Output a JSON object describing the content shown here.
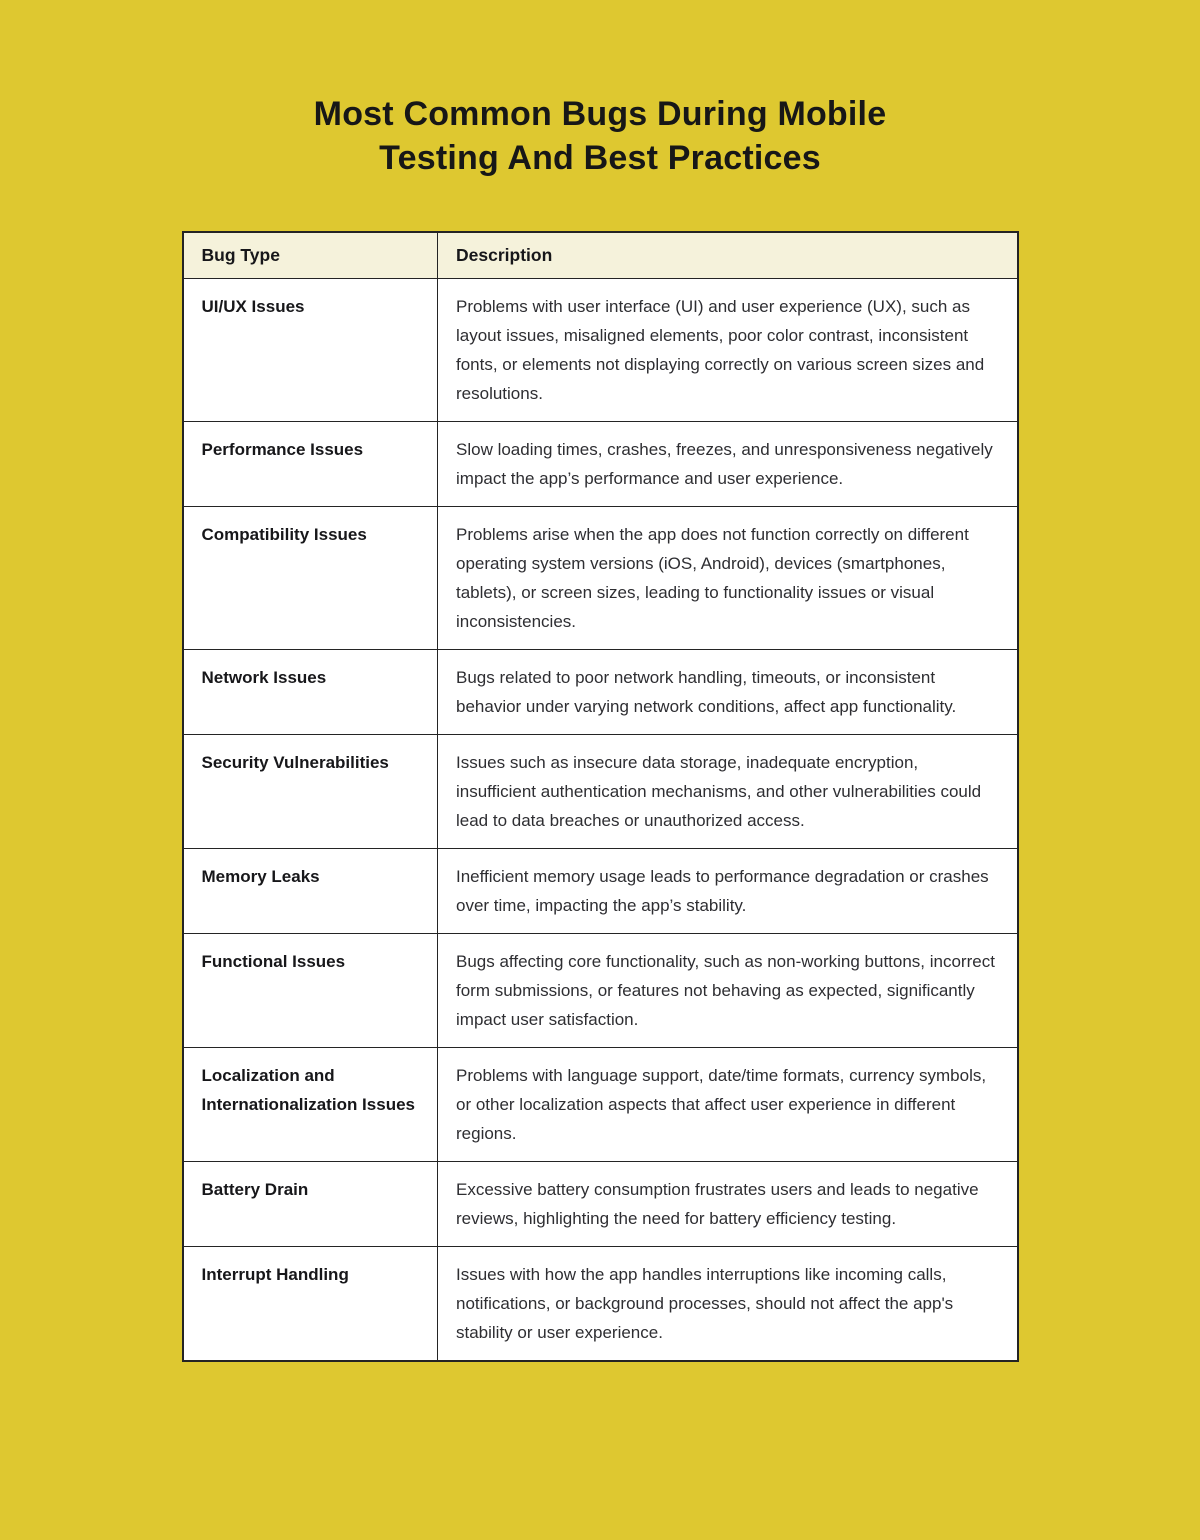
{
  "title": {
    "line1": "Most Common Bugs During Mobile",
    "line2": "Testing And Best Practices"
  },
  "colors": {
    "page_background": "#DEC830",
    "table_header_background": "#F5F2DB",
    "table_cell_background": "#FFFFFF",
    "table_border": "#242424",
    "heading_text": "#171717",
    "body_text": "#2E2E32"
  },
  "table": {
    "header": {
      "bug_type": "Bug Type",
      "description": "Description"
    },
    "rows": [
      {
        "bug_type": "UI/UX Issues",
        "description": "Problems with user interface (UI) and user experience (UX), such as layout issues, misaligned elements, poor color contrast, inconsistent fonts, or elements not displaying correctly on various screen sizes and resolutions."
      },
      {
        "bug_type": "Performance Issues",
        "description": "Slow loading times, crashes, freezes, and unresponsiveness negatively impact the app’s performance and user experience."
      },
      {
        "bug_type": "Compatibility Issues",
        "description": "Problems arise when the app does not function correctly on different operating system versions (iOS, Android), devices (smartphones, tablets), or screen sizes, leading to functionality issues or visual inconsistencies."
      },
      {
        "bug_type": "Network Issues",
        "description": "Bugs related to poor network handling, timeouts, or inconsistent behavior under varying network conditions, affect app functionality."
      },
      {
        "bug_type": "Security Vulnerabilities",
        "description": "Issues such as insecure data storage, inadequate encryption, insufficient authentication mechanisms, and other vulnerabilities could lead to data breaches or unauthorized access."
      },
      {
        "bug_type": "Memory Leaks",
        "description": "Inefficient memory usage leads to performance degradation or crashes over time, impacting the app’s stability."
      },
      {
        "bug_type": "Functional Issues",
        "description": "Bugs affecting core functionality, such as non-working buttons, incorrect form submissions, or features not behaving as expected, significantly impact user satisfaction."
      },
      {
        "bug_type": "Localization and Internationalization Issues",
        "description": "Problems with language support, date/time formats, currency symbols, or other localization aspects that affect user experience in different regions."
      },
      {
        "bug_type": "Battery Drain",
        "description": "Excessive battery consumption frustrates users and leads to negative reviews, highlighting the need for battery efficiency testing."
      },
      {
        "bug_type": "Interrupt Handling",
        "description": "Issues with how the app handles interruptions like incoming calls, notifications, or background processes, should not affect the app's stability or user experience."
      }
    ]
  }
}
